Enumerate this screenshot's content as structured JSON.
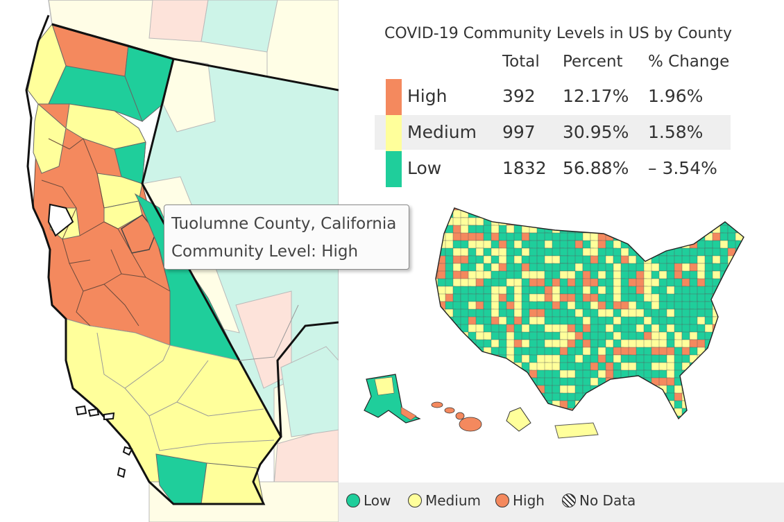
{
  "title": "COVID-19 Community Levels in US by County",
  "table": {
    "headers": [
      "Total",
      "Percent",
      "% Change"
    ],
    "rows": [
      {
        "level": "High",
        "total": "392",
        "percent": "12.17%",
        "change": "1.96%",
        "color": "#f4895e"
      },
      {
        "level": "Medium",
        "total": "997",
        "percent": "30.95%",
        "change": "1.58%",
        "color": "#ffff9b"
      },
      {
        "level": "Low",
        "total": "1832",
        "percent": "56.88%",
        "change": "– 3.54%",
        "color": "#1fce9b"
      }
    ]
  },
  "tooltip": {
    "line1": "Tuolumne County, California",
    "line2": "Community Level: High"
  },
  "legend": [
    {
      "label": "Low",
      "color": "#1fce9b",
      "icon": "low-level-dot-icon"
    },
    {
      "label": "Medium",
      "color": "#ffff9b",
      "icon": "medium-level-dot-icon"
    },
    {
      "label": "High",
      "color": "#f4895e",
      "icon": "high-level-dot-icon"
    },
    {
      "label": "No Data",
      "color": "hatched",
      "icon": "no-data-hatched-dot-icon"
    }
  ],
  "colors": {
    "high": "#f4895e",
    "medium": "#ffff9b",
    "low": "#1fce9b",
    "high_faded": "#fde3da",
    "medium_faded": "#fffee6",
    "low_faded": "#cdf4e8"
  }
}
